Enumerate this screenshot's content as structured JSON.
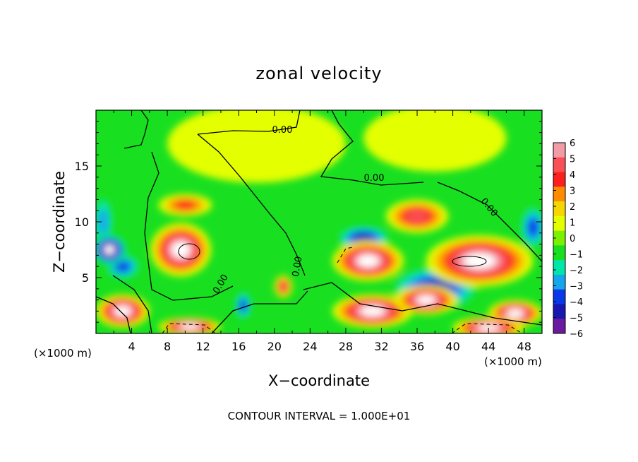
{
  "chart_data": {
    "type": "heatmap",
    "title": "zonal velocity",
    "xlabel": "X−coordinate",
    "ylabel": "Z−coordinate",
    "x_unit_left": "(×1000 m)",
    "x_unit_right": "(×1000 m)",
    "footer": "CONTOUR INTERVAL = 1.000E+01",
    "xlim": [
      0,
      50
    ],
    "ylim": [
      0,
      20
    ],
    "x_ticks": [
      4,
      8,
      12,
      16,
      20,
      24,
      28,
      32,
      36,
      40,
      44,
      48
    ],
    "y_ticks": [
      5,
      10,
      15
    ],
    "colorbar": {
      "ticks": [
        "6",
        "5",
        "4",
        "3",
        "2",
        "1",
        "0",
        "−1",
        "−2",
        "−3",
        "−4",
        "−5",
        "−6"
      ],
      "colors": [
        "#f29aa6",
        "#fa4f57",
        "#fb1f1f",
        "#ff8b00",
        "#f6d600",
        "#e4ff00",
        "#7bf000",
        "#18e020",
        "#00e6a8",
        "#16a6ee",
        "#0838e8",
        "#1818b0",
        "#6a1a9e"
      ],
      "over_color": "#ffffff"
    },
    "contour_labels": [
      "0.00",
      "0.00",
      "0.00",
      "0.00",
      "0.00"
    ],
    "features": [
      {
        "x": 9.5,
        "z": 7.5,
        "rx": 3.4,
        "rz": 2.4,
        "value": 9
      },
      {
        "x": 1.5,
        "z": 7.5,
        "rx": 2.0,
        "rz": 1.4,
        "value": -9
      },
      {
        "x": 3.0,
        "z": 6.0,
        "rx": 2.0,
        "rz": 1.2,
        "value": -4
      },
      {
        "x": 10.0,
        "z": 11.5,
        "rx": 3.0,
        "rz": 1.0,
        "value": 4
      },
      {
        "x": 3.0,
        "z": 2.0,
        "rx": 3.0,
        "rz": 1.5,
        "value": 8
      },
      {
        "x": 10.5,
        "z": 0.6,
        "rx": 3.5,
        "rz": 0.8,
        "value": 9
      },
      {
        "x": 16.5,
        "z": 2.5,
        "rx": 1.0,
        "rz": 1.3,
        "value": -4
      },
      {
        "x": 21.0,
        "z": 4.2,
        "rx": 1.0,
        "rz": 1.0,
        "value": 5
      },
      {
        "x": 30.5,
        "z": 6.5,
        "rx": 4.0,
        "rz": 1.8,
        "value": 10
      },
      {
        "x": 30.0,
        "z": 8.5,
        "rx": 3.0,
        "rz": 1.2,
        "value": -5
      },
      {
        "x": 31.0,
        "z": 2.0,
        "rx": 4.5,
        "rz": 1.5,
        "value": 8
      },
      {
        "x": 38.0,
        "z": 4.0,
        "rx": 5.0,
        "rz": 2.0,
        "value": -5
      },
      {
        "x": 43.0,
        "z": 6.5,
        "rx": 6.0,
        "rz": 2.3,
        "value": 10
      },
      {
        "x": 36.0,
        "z": 10.5,
        "rx": 3.5,
        "rz": 1.5,
        "value": 5
      },
      {
        "x": 37.0,
        "z": 3.0,
        "rx": 3.5,
        "rz": 1.3,
        "value": 10
      },
      {
        "x": 47.0,
        "z": 1.8,
        "rx": 3.0,
        "rz": 1.2,
        "value": 10
      },
      {
        "x": 44.0,
        "z": 0.5,
        "rx": 4.0,
        "rz": 1.0,
        "value": 10
      },
      {
        "x": 49.0,
        "z": 9.5,
        "rx": 1.5,
        "rz": 2.0,
        "value": -4
      },
      {
        "x": 38.0,
        "z": 17.5,
        "rx": 8.0,
        "rz": 3.0,
        "value": 1.5
      },
      {
        "x": 18.0,
        "z": 17.0,
        "rx": 10.0,
        "rz": 3.5,
        "value": 1.0
      },
      {
        "x": 0.8,
        "z": 10.0,
        "rx": 1.2,
        "rz": 2.5,
        "value": -3
      }
    ]
  }
}
